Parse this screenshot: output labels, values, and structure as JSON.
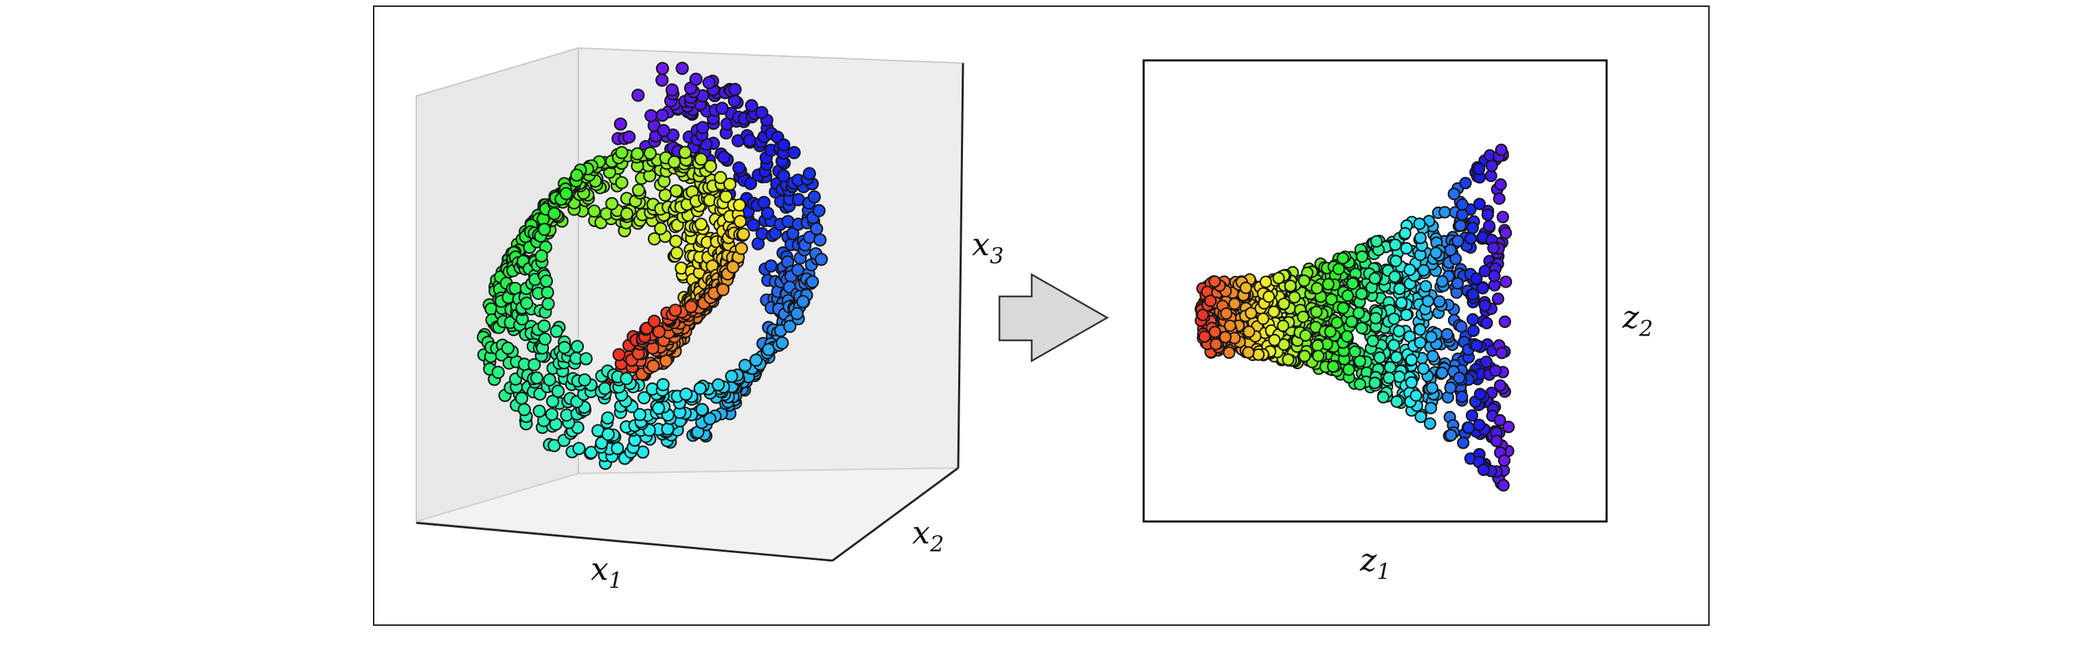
{
  "left_panel": {
    "x_label": "x",
    "x_sub": "1",
    "y_label": "x",
    "y_sub": "2",
    "z_label": "x",
    "z_sub": "3"
  },
  "right_panel": {
    "x_label": "z",
    "x_sub": "1",
    "y_label": "z",
    "y_sub": "2"
  },
  "colors": {
    "colormap": "rainbow",
    "box_fill": "#ececec",
    "arrow_fill": "#d9d9d9",
    "stroke": "#111111"
  },
  "icons": {
    "transition": "right-arrow-icon"
  }
}
